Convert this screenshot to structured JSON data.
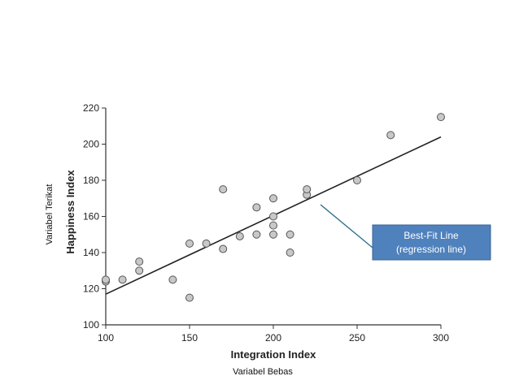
{
  "chart_data": {
    "type": "scatter",
    "title": "",
    "xlabel": "Integration Index",
    "ylabel": "Happiness Index",
    "xlim": [
      100,
      300
    ],
    "ylim": [
      100,
      220
    ],
    "x_ticks": [
      100,
      150,
      200,
      250,
      300
    ],
    "y_ticks": [
      100,
      120,
      140,
      160,
      180,
      200,
      220
    ],
    "grid": false,
    "points": [
      {
        "x": 100,
        "y": 124
      },
      {
        "x": 100,
        "y": 125
      },
      {
        "x": 110,
        "y": 125
      },
      {
        "x": 120,
        "y": 130
      },
      {
        "x": 120,
        "y": 135
      },
      {
        "x": 140,
        "y": 125
      },
      {
        "x": 150,
        "y": 115
      },
      {
        "x": 150,
        "y": 145
      },
      {
        "x": 160,
        "y": 145
      },
      {
        "x": 170,
        "y": 142
      },
      {
        "x": 170,
        "y": 175
      },
      {
        "x": 180,
        "y": 149
      },
      {
        "x": 190,
        "y": 150
      },
      {
        "x": 190,
        "y": 165
      },
      {
        "x": 200,
        "y": 150
      },
      {
        "x": 200,
        "y": 155
      },
      {
        "x": 200,
        "y": 160
      },
      {
        "x": 200,
        "y": 170
      },
      {
        "x": 210,
        "y": 140
      },
      {
        "x": 210,
        "y": 150
      },
      {
        "x": 220,
        "y": 172
      },
      {
        "x": 220,
        "y": 175
      },
      {
        "x": 250,
        "y": 180
      },
      {
        "x": 270,
        "y": 205
      },
      {
        "x": 300,
        "y": 215
      }
    ],
    "regression_line": {
      "x1": 100,
      "y1": 117,
      "x2": 300,
      "y2": 204
    },
    "annotation": {
      "line1": "Best-Fit Line",
      "line2": "(regression line)",
      "color": "#4f81bd"
    },
    "point_color": "#c8c8c8",
    "captions": {
      "x": "Variabel Bebas",
      "y": "Variabel Terikat"
    }
  }
}
